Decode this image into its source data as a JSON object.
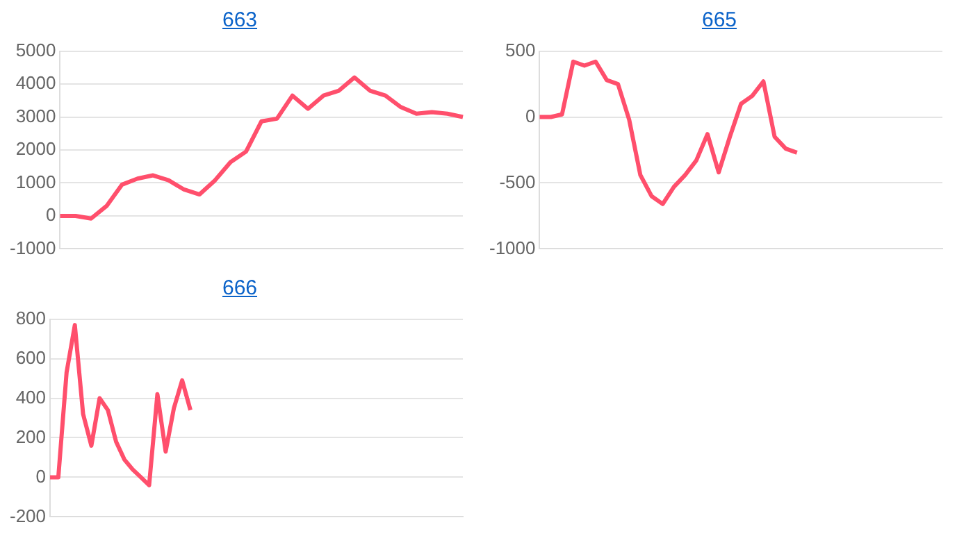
{
  "chart_data": [
    {
      "type": "line",
      "title": "663",
      "categories": [
        null,
        null,
        null,
        null,
        null,
        null,
        null,
        null,
        null,
        null,
        null,
        null,
        null,
        null,
        null,
        null,
        null,
        null,
        null,
        null,
        null,
        null,
        null,
        null,
        null,
        null,
        null
      ],
      "series": [
        {
          "color": "#ff4f6c",
          "values": [
            0,
            0,
            -80,
            300,
            950,
            1130,
            1230,
            1080,
            800,
            650,
            1080,
            1630,
            1950,
            2870,
            2950,
            3650,
            3250,
            3650,
            3800,
            4200,
            3800,
            3650,
            3300,
            3100,
            3150,
            3100,
            3000
          ]
        }
      ],
      "ylim": [
        -1000,
        5000
      ],
      "yticks": [
        -1000,
        0,
        1000,
        2000,
        3000,
        4000,
        5000
      ],
      "grid": "y",
      "legend": false,
      "tick_labels": "y",
      "marker": "none",
      "line_style": "solid"
    },
    {
      "type": "line",
      "title": "665",
      "categories": [
        null,
        null,
        null,
        null,
        null,
        null,
        null,
        null,
        null,
        null,
        null,
        null,
        null,
        null,
        null,
        null,
        null,
        null,
        null,
        null,
        null,
        null,
        null,
        null,
        null,
        null,
        null,
        null,
        null,
        null,
        null,
        null,
        null,
        null,
        null,
        null,
        null
      ],
      "series": [
        {
          "color": "#ff4f6c",
          "values": [
            0,
            0,
            20,
            420,
            390,
            420,
            280,
            250,
            -20,
            -440,
            -600,
            -660,
            -530,
            -440,
            -330,
            -130,
            -420,
            -150,
            100,
            160,
            270,
            -150,
            -240,
            -270,
            null,
            null,
            null,
            null,
            null,
            null,
            null,
            null,
            null,
            null,
            null,
            null,
            null
          ]
        }
      ],
      "ylim": [
        -1000,
        500
      ],
      "yticks": [
        -1000,
        -500,
        0,
        500
      ],
      "grid": "y",
      "legend": false,
      "tick_labels": "y",
      "marker": "none",
      "line_style": "solid"
    },
    {
      "type": "line",
      "title": "666",
      "categories": [
        null,
        null,
        null,
        null,
        null,
        null,
        null,
        null,
        null,
        null,
        null,
        null,
        null,
        null,
        null,
        null,
        null,
        null,
        null,
        null,
        null,
        null,
        null,
        null,
        null,
        null,
        null,
        null,
        null,
        null,
        null,
        null,
        null,
        null,
        null,
        null,
        null,
        null,
        null,
        null,
        null,
        null,
        null,
        null,
        null,
        null,
        null,
        null,
        null,
        null,
        null
      ],
      "series": [
        {
          "color": "#ff4f6c",
          "values": [
            0,
            0,
            530,
            770,
            320,
            160,
            400,
            340,
            180,
            90,
            40,
            0,
            -40,
            420,
            130,
            350,
            490,
            340,
            null,
            null,
            null,
            null,
            null,
            null,
            null,
            null,
            null,
            null,
            null,
            null,
            null,
            null,
            null,
            null,
            null,
            null,
            null,
            null,
            null,
            null,
            null,
            null,
            null,
            null,
            null,
            null,
            null,
            null,
            null,
            null,
            null
          ]
        }
      ],
      "ylim": [
        -200,
        800
      ],
      "yticks": [
        -200,
        0,
        200,
        400,
        600,
        800
      ],
      "grid": "y",
      "legend": false,
      "tick_labels": "y",
      "marker": "none",
      "line_style": "solid"
    }
  ]
}
